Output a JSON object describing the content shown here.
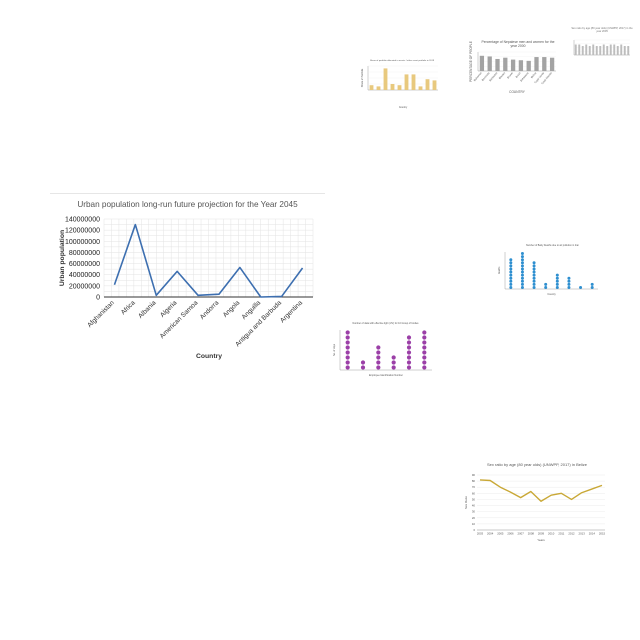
{
  "main": {
    "chart_data": {
      "type": "line",
      "title": "Urban population long-run future projection for the Year 2045",
      "xlabel": "Country",
      "ylabel": "Urban population",
      "categories": [
        "Afghanistan",
        "Africa",
        "Albania",
        "Algeria",
        "American Samoa",
        "Andorra",
        "Angola",
        "Anguilla",
        "Antigua and Barbuda",
        "Argentina"
      ],
      "values": [
        22000000,
        130000000,
        3000000,
        46000000,
        3000000,
        5000000,
        53000000,
        0,
        1000000,
        52000000
      ],
      "ylim": [
        0,
        140000000
      ],
      "yticks": [
        "0",
        "20000000",
        "40000000",
        "60000000",
        "80000000",
        "100000000",
        "120000000",
        "140000000"
      ],
      "grid": true,
      "color": "#3d6fb0"
    }
  },
  "thumbs": [
    {
      "chart_data": {
        "type": "bar",
        "title": "Share of portfolio allocated in assets / other asset portfolio in 2019",
        "xlabel": "Country",
        "ylabel": "Share of Portfolio",
        "values": [
          4,
          3,
          18,
          5,
          4,
          13,
          13,
          3,
          9,
          8
        ],
        "ylim": [
          0,
          20
        ],
        "color": "#e8c97e"
      }
    },
    {
      "chart_data": {
        "type": "bar",
        "title": "Percentage of Nepalese men and women for the year 2000",
        "xlabel": "COUNTRY",
        "ylabel": "PERCENTAGE OF PEOPLE",
        "categories": [
          "Bahamas",
          "Bermuda",
          "Barbados",
          "Bhutan",
          "Brunei",
          "Brazil",
          "Botswana",
          "Belize",
          "Cape Verde",
          "Cook Islands"
        ],
        "values": [
          24,
          23,
          19,
          21,
          18,
          17,
          16,
          22,
          22,
          21
        ],
        "ylim": [
          0,
          30
        ],
        "color": "#a3a3a3"
      }
    },
    {
      "chart_data": {
        "type": "bar",
        "title": "Sex ratio by age (80 year olds) (UNWPP, 2017) in the year 2005",
        "values": [
          7,
          7,
          6,
          7,
          6,
          7,
          6,
          6,
          7,
          6,
          7,
          7,
          6,
          7,
          6,
          6
        ],
        "ylim": [
          0,
          10
        ],
        "color": "#bdbdbd"
      }
    },
    {
      "chart_data": {
        "type": "scatter",
        "title": "Number of Baby Deaths due to air pollution in Iran",
        "xlabel": "Country",
        "ylabel": "Deaths",
        "values": [
          10,
          12,
          9,
          2,
          5,
          4,
          1,
          2
        ],
        "ylim": [
          0,
          12
        ],
        "color": "#2e8fd0"
      }
    },
    {
      "chart_data": {
        "type": "scatter",
        "title": "Number of data with effective light (UV) for 10 Group of bodies",
        "xlabel": "Employee Identification Number",
        "ylabel": "No. of days",
        "values": [
          8,
          2,
          5,
          3,
          7,
          8
        ],
        "ylim": [
          0,
          8
        ],
        "color": "#9b3fa7"
      }
    },
    {
      "chart_data": {
        "type": "line",
        "title": "Sex ratio by age (80 year olds) (UNWPP, 2017) in Belize",
        "xlabel": "Years",
        "ylabel": "Sex Ratio",
        "categories": [
          "2003",
          "2004",
          "2005",
          "2006",
          "2007",
          "2008",
          "2009",
          "2010",
          "2011",
          "2012",
          "2013",
          "2014",
          "2015"
        ],
        "values": [
          82,
          81,
          70,
          62,
          53,
          63,
          47,
          57,
          60,
          50,
          61,
          67,
          73
        ],
        "ylim": [
          0,
          90
        ],
        "yticks": [
          "0",
          "10",
          "20",
          "30",
          "40",
          "50",
          "60",
          "70",
          "80",
          "90"
        ],
        "color": "#c9a836"
      }
    }
  ]
}
